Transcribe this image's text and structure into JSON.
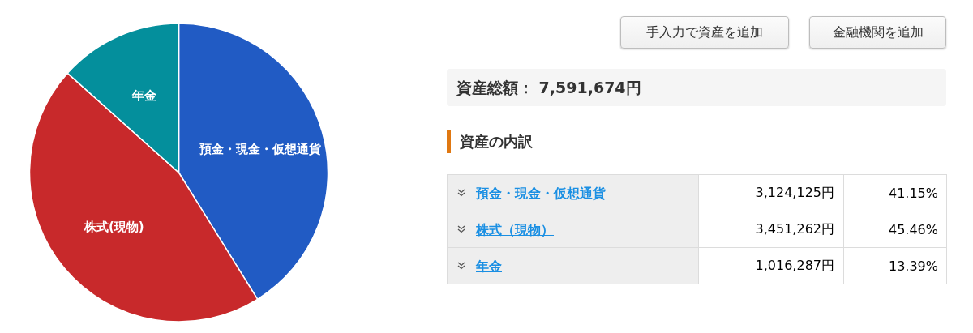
{
  "chart_data": {
    "type": "pie",
    "title": "資産の内訳",
    "categories": [
      "預金・現金・仮想通貨",
      "株式(現物)",
      "年金"
    ],
    "values": [
      41.15,
      45.46,
      13.39
    ],
    "colors": [
      "#215bc4",
      "#c8292b",
      "#048f9c"
    ],
    "annotations": [
      "手入力で資産を追加",
      "金融機関を追加",
      "資産総額： 7,591,674円",
      "預金・現金・仮想通貨",
      "株式（現物）",
      "年金",
      "3,124,125円",
      "3,451,262円",
      "1,016,287円",
      "41.15%",
      "45.46%",
      "13.39%"
    ]
  }
}
